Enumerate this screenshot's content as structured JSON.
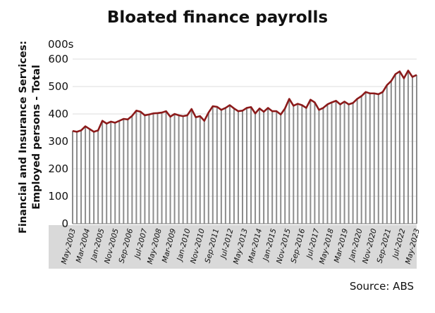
{
  "chart_data": {
    "type": "bar+line",
    "title": "Bloated finance payrolls",
    "ylabel_lines": [
      "Financial and Insurance Services:",
      "Employed persons - Total"
    ],
    "yunit": "000s",
    "ylim": [
      0,
      600
    ],
    "yticks": [
      0,
      100,
      200,
      300,
      400,
      500,
      600
    ],
    "grid": true,
    "xlabels": [
      "May-2003",
      "Mar-2004",
      "Jan-2005",
      "Nov-2005",
      "Sep-2006",
      "Jul-2007",
      "May-2008",
      "Mar-2009",
      "Jan-2010",
      "Nov-2010",
      "Sep-2011",
      "Jul-2012",
      "May-2013",
      "Mar-2014",
      "Jan-2015",
      "Nov-2015",
      "Sep-2016",
      "Jul-2017",
      "May-2018",
      "Mar-2019",
      "Jan-2020",
      "Nov-2020",
      "Sep-2021",
      "Jul-2022",
      "May-2023"
    ],
    "values": [
      338,
      335,
      340,
      355,
      345,
      335,
      340,
      375,
      365,
      372,
      368,
      375,
      382,
      380,
      393,
      412,
      408,
      395,
      398,
      402,
      403,
      405,
      410,
      390,
      400,
      395,
      392,
      395,
      418,
      388,
      392,
      375,
      405,
      428,
      426,
      415,
      422,
      432,
      420,
      410,
      412,
      422,
      425,
      402,
      420,
      408,
      422,
      410,
      410,
      398,
      420,
      455,
      430,
      437,
      432,
      422,
      452,
      442,
      415,
      422,
      435,
      442,
      448,
      435,
      445,
      435,
      440,
      455,
      465,
      480,
      475,
      475,
      472,
      480,
      505,
      520,
      545,
      555,
      530,
      558,
      535,
      542
    ],
    "bar_color": "#8c8c8c",
    "line_color": "#8b1a1a",
    "axis_band_color": "#d9d9d9"
  },
  "source": "Source: ABS"
}
